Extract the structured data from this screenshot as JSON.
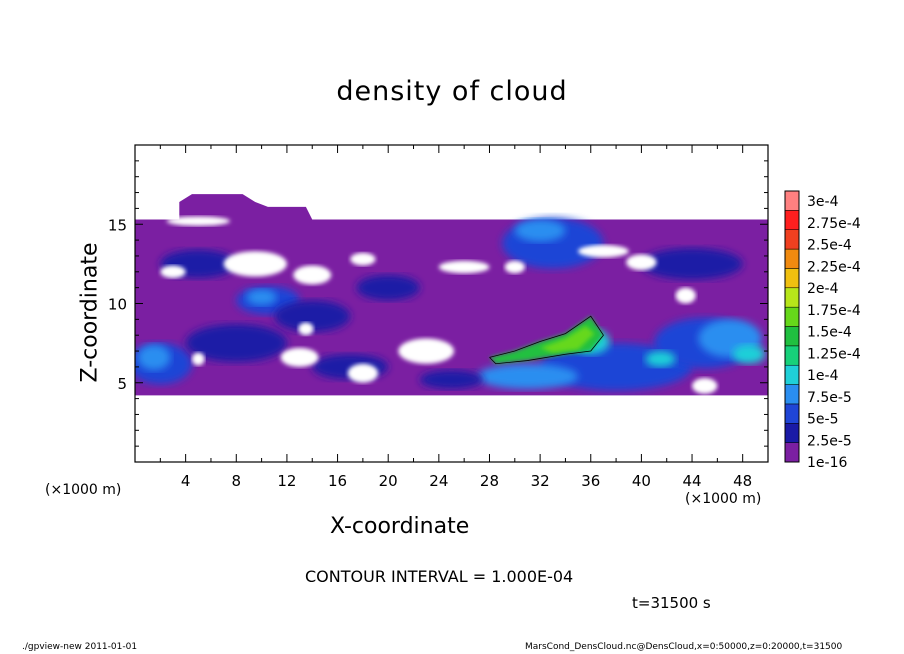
{
  "chart_data": {
    "type": "heatmap",
    "title": "density of cloud",
    "xlabel": "X-coordinate",
    "ylabel": "Z-coordinate",
    "x_unit_note": "(×1000 m)",
    "y_unit_note": "(×1000 m)",
    "xlim": [
      0,
      50
    ],
    "ylim": [
      0,
      20
    ],
    "x_ticks": [
      4,
      8,
      12,
      16,
      20,
      24,
      28,
      32,
      36,
      40,
      44,
      48
    ],
    "y_ticks": [
      5,
      10,
      15
    ],
    "colorbar": {
      "levels": [
        "1e-16",
        "2.5e-5",
        "5e-5",
        "7.5e-5",
        "1e-4",
        "1.25e-4",
        "1.5e-4",
        "1.75e-4",
        "2e-4",
        "2.25e-4",
        "2.5e-4",
        "2.75e-4",
        "3e-4"
      ],
      "colors": [
        "#7b1fa2",
        "#1a1aa6",
        "#1f45d6",
        "#2a8ef0",
        "#1fd0d8",
        "#17d17a",
        "#20c040",
        "#66d81a",
        "#b7e61a",
        "#f0c010",
        "#f08a10",
        "#f04020",
        "#ff1f1f",
        "#ff8080"
      ]
    },
    "cloud_layer_z_range": [
      4.2,
      16.8
    ],
    "max_region": {
      "x_range": [
        28,
        37
      ],
      "z_range": [
        6,
        9
      ],
      "level": "1.5e-4"
    },
    "contour_interval": "CONTOUR INTERVAL = 1.000E-04",
    "time": "t=31500 s"
  },
  "footer": {
    "left": "./gpview-new  2011-01-01",
    "right": "MarsCond_DensCloud.nc@DensCloud,x=0:50000,z=0:20000,t=31500"
  }
}
